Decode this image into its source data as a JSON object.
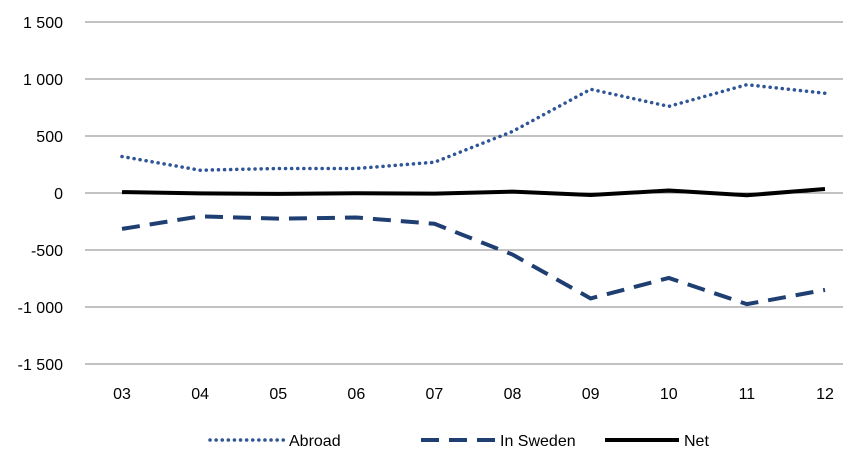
{
  "chart_data": {
    "type": "line",
    "title": "",
    "xlabel": "",
    "ylabel": "",
    "categories": [
      "03",
      "04",
      "05",
      "06",
      "07",
      "08",
      "09",
      "10",
      "11",
      "12"
    ],
    "ylim": [
      -1500,
      1500
    ],
    "yticks": [
      1500,
      1000,
      500,
      0,
      -500,
      -1000,
      -1500
    ],
    "ytick_labels": [
      "1 500",
      "1 000",
      "500",
      "0",
      "-500",
      "-1 000",
      "-1 500"
    ],
    "grid": "horizontal",
    "legend_position": "bottom",
    "series": [
      {
        "name": "Abroad",
        "style": "dotted",
        "color": "#2e5597",
        "values": [
          320,
          200,
          215,
          215,
          270,
          540,
          910,
          760,
          950,
          875
        ]
      },
      {
        "name": "In Sweden",
        "style": "dashed",
        "color": "#1f3f73",
        "values": [
          -315,
          -205,
          -225,
          -215,
          -270,
          -540,
          -925,
          -745,
          -975,
          -850
        ]
      },
      {
        "name": "Net",
        "style": "solid",
        "color": "#000000",
        "values": [
          8,
          -3,
          -8,
          -2,
          -5,
          12,
          -18,
          22,
          -20,
          35
        ]
      }
    ]
  }
}
